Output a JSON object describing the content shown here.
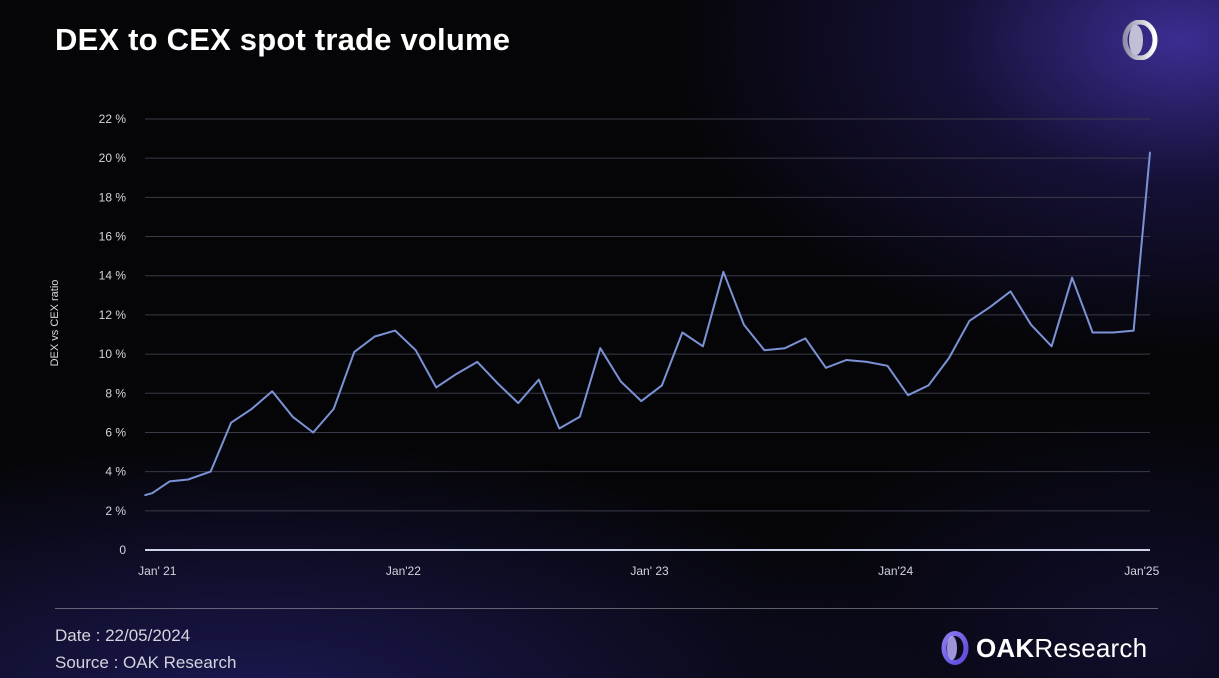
{
  "header": {
    "title": "DEX to CEX spot trade volume"
  },
  "footer": {
    "date": "Date : 22/05/2024",
    "source": "Source : OAK Research",
    "brand_bold": "OAK",
    "brand_rest": "Research"
  },
  "colors": {
    "line": "#7b93d6",
    "grid": "#3a3a48",
    "axis": "#cfd3ea"
  },
  "chart_data": {
    "type": "line",
    "title": "DEX to CEX spot trade volume",
    "xlabel": "",
    "ylabel": "DEX vs CEX ratio",
    "ylim": [
      0,
      22
    ],
    "yticks": [
      0,
      2,
      4,
      6,
      8,
      10,
      12,
      14,
      16,
      18,
      20,
      22
    ],
    "ytick_labels": [
      "0",
      "2 %",
      "4 %",
      "6 %",
      "8 %",
      "10 %",
      "12 %",
      "14 %",
      "16 %",
      "18 %",
      "20 %",
      "22 %"
    ],
    "xlim": [
      -0.6,
      48.4
    ],
    "xticks": [
      0,
      12,
      24,
      36,
      48
    ],
    "xtick_labels": [
      "Jan' 21",
      "Jan'22",
      "Jan' 23",
      "Jan'24",
      "Jan'25"
    ],
    "grid": true,
    "series": [
      {
        "name": "DEX vs CEX ratio",
        "x": [
          -0.6,
          -0.25,
          0.6,
          1.5,
          2.6,
          3.6,
          4.6,
          5.6,
          6.6,
          7.6,
          8.6,
          9.6,
          10.6,
          11.6,
          12.6,
          13.6,
          14.6,
          15.6,
          16.6,
          17.6,
          18.6,
          19.6,
          20.6,
          21.6,
          22.6,
          23.6,
          24.6,
          25.6,
          26.6,
          27.6,
          28.6,
          29.6,
          30.6,
          31.6,
          32.6,
          33.6,
          34.6,
          35.6,
          36.6,
          37.6,
          38.6,
          39.6,
          40.6,
          41.6,
          42.6,
          43.6,
          44.6,
          45.6,
          46.6,
          47.6,
          48.4
        ],
        "values": [
          2.8,
          2.9,
          3.5,
          3.6,
          4.0,
          6.5,
          7.2,
          8.1,
          6.8,
          6.0,
          7.2,
          10.1,
          10.9,
          11.2,
          10.2,
          8.3,
          9.0,
          9.6,
          8.5,
          7.5,
          8.7,
          6.2,
          6.8,
          10.3,
          8.6,
          7.6,
          8.4,
          11.1,
          10.4,
          14.2,
          11.5,
          10.2,
          10.3,
          10.8,
          9.3,
          9.7,
          9.6,
          9.4,
          7.9,
          8.4,
          9.8,
          11.7,
          12.4,
          13.2,
          11.5,
          10.4,
          13.9,
          11.1,
          11.1,
          11.2,
          20.3
        ]
      }
    ]
  }
}
